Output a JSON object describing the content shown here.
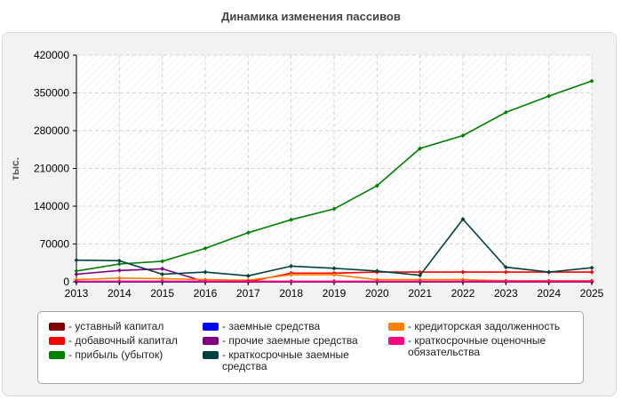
{
  "title": "Динамика изменения пассивов",
  "chart_data": {
    "type": "line",
    "title": "Динамика изменения пассивов",
    "ylabel": "тыс.",
    "xlabel": "",
    "x": [
      2013,
      2014,
      2015,
      2016,
      2017,
      2018,
      2019,
      2020,
      2021,
      2022,
      2023,
      2024,
      2025
    ],
    "x_tick_labels": [
      "2013",
      "2014",
      "2015",
      "2016",
      "2017",
      "2018",
      "2019",
      "2020",
      "2021",
      "2022",
      "2023",
      "2024",
      "2025"
    ],
    "ylim": [
      0,
      420000
    ],
    "y_tick_labels": [
      "0",
      "70000",
      "140000",
      "210000",
      "280000",
      "350000",
      "420000"
    ],
    "grid": true,
    "legend_position": "bottom",
    "series": [
      {
        "name": "уставный капитал",
        "color": "#800000",
        "values": [
          0,
          0,
          0,
          0,
          0,
          0,
          0,
          0,
          0,
          0,
          0,
          0,
          0
        ]
      },
      {
        "name": "добавочный капитал",
        "color": "#ff0000",
        "values": [
          0,
          0,
          0,
          0,
          0,
          16000,
          16000,
          18000,
          18000,
          18000,
          18000,
          18000,
          18000
        ]
      },
      {
        "name": "прибыль (убыток)",
        "color": "#008000",
        "values": [
          20000,
          33000,
          38000,
          62000,
          91000,
          115000,
          135000,
          178000,
          247000,
          271000,
          314000,
          344000,
          372000
        ]
      },
      {
        "name": "заемные средства",
        "color": "#0000ff",
        "values": [
          0,
          0,
          0,
          0,
          0,
          0,
          0,
          0,
          0,
          0,
          0,
          0,
          0
        ]
      },
      {
        "name": "прочие заемные средства",
        "color": "#800080",
        "values": [
          14000,
          21000,
          24000,
          0,
          0,
          0,
          0,
          0,
          0,
          0,
          0,
          0,
          0
        ]
      },
      {
        "name": "краткосрочные заемные средства",
        "color": "#004040",
        "values": [
          40000,
          39000,
          14000,
          18000,
          11000,
          29000,
          25000,
          20000,
          12000,
          116000,
          27000,
          18000,
          26000
        ]
      },
      {
        "name": "кредиторская задолженность",
        "color": "#ff8000",
        "values": [
          4000,
          7000,
          6000,
          4000,
          3000,
          13000,
          13000,
          4000,
          4000,
          4000,
          2000,
          2000,
          2000
        ]
      },
      {
        "name": "краткосрочные оценочные обязательства",
        "color": "#ff0080",
        "values": [
          1000,
          1000,
          1000,
          1000,
          1000,
          1000,
          1000,
          1000,
          1000,
          1000,
          1000,
          1000,
          1000
        ]
      }
    ]
  }
}
